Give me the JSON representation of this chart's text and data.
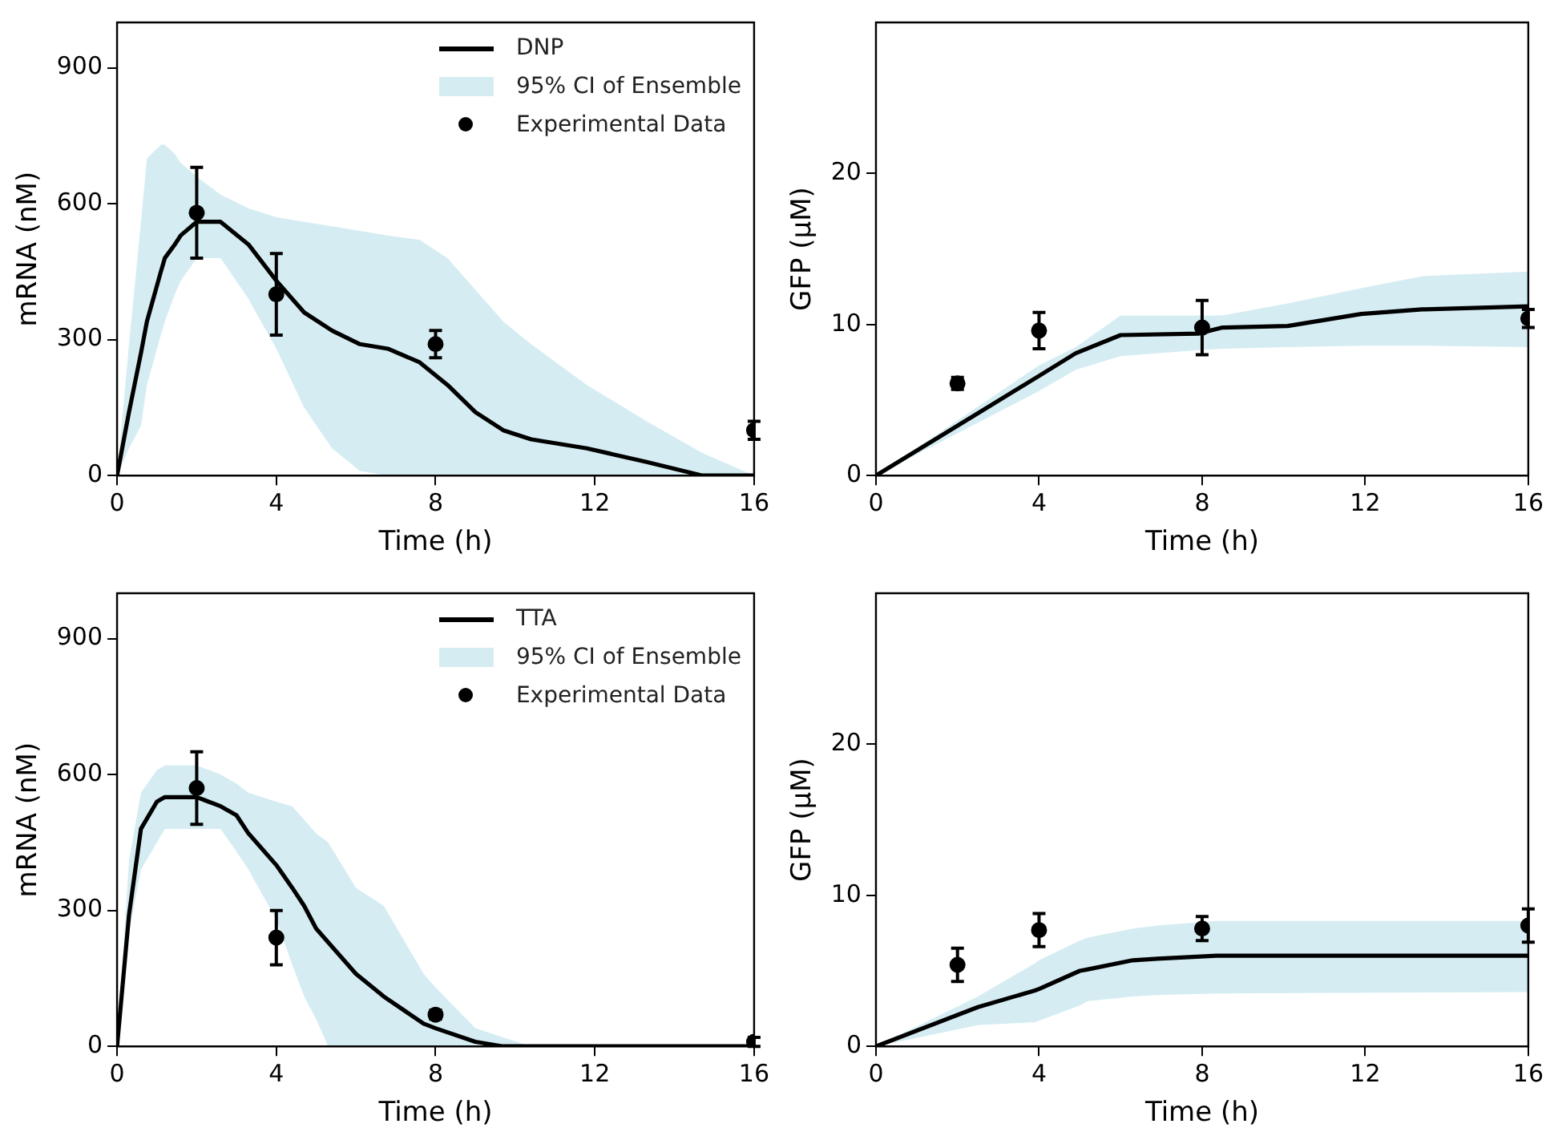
{
  "chart_data": [
    {
      "type": "line",
      "xlabel": "Time (h)",
      "ylabel": "mRNA (nM)",
      "xlim": [
        0,
        16
      ],
      "xticks": [
        0,
        4,
        8,
        12,
        16
      ],
      "ylim": [
        0,
        1000
      ],
      "yticks": [
        0,
        300,
        600,
        900
      ],
      "grid": false,
      "legend": "top right",
      "annotations": [
        "95% CI of Ensemble"
      ],
      "series": [
        {
          "name": "DNP",
          "color": "#000000",
          "x": [
            0,
            0.3,
            0.6,
            0.75,
            1.1,
            1.2,
            1.45,
            1.6,
            2,
            2.6,
            3.3,
            4,
            4.7,
            5.4,
            6.1,
            6.8,
            7.6,
            8.3,
            9,
            9.7,
            10.4,
            11.8,
            13.3,
            14.7,
            16
          ],
          "values": [
            0,
            140,
            270,
            340,
            450,
            480,
            510,
            530,
            560,
            560,
            510,
            430,
            360,
            320,
            290,
            280,
            250,
            200,
            140,
            100,
            80,
            60,
            30,
            0,
            0
          ],
          "lower": [
            0,
            60,
            110,
            200,
            310,
            340,
            400,
            430,
            480,
            480,
            390,
            280,
            150,
            60,
            10,
            0,
            0,
            0,
            0,
            0,
            0,
            0,
            0,
            0,
            0
          ],
          "upper": [
            0,
            290,
            560,
            700,
            730,
            730,
            710,
            690,
            660,
            620,
            590,
            570,
            560,
            550,
            540,
            530,
            520,
            480,
            410,
            340,
            290,
            200,
            120,
            50,
            0
          ]
        },
        {
          "type": "scatter",
          "name": "Experimental Data",
          "color": "#000000",
          "marker": "circle",
          "x": [
            2,
            4,
            8,
            16
          ],
          "values": [
            580,
            400,
            290,
            100
          ],
          "errors": [
            100,
            90,
            30,
            20
          ]
        }
      ]
    },
    {
      "type": "line",
      "xlabel": "Time (h)",
      "ylabel": "GFP (μM)",
      "xlim": [
        0,
        16
      ],
      "xticks": [
        0,
        4,
        8,
        12,
        16
      ],
      "ylim": [
        0,
        30
      ],
      "yticks": [
        0,
        10,
        20
      ],
      "grid": false,
      "series": [
        {
          "color": "#000000",
          "x": [
            0,
            4,
            4.9,
            6,
            7.9,
            8.5,
            10.1,
            11.9,
            13.4,
            16
          ],
          "values": [
            0,
            6.6,
            8.1,
            9.3,
            9.4,
            9.8,
            9.9,
            10.7,
            11,
            11.2
          ],
          "lower": [
            0,
            5.6,
            7,
            7.9,
            8.3,
            8.4,
            8.5,
            8.6,
            8.6,
            8.5
          ],
          "upper": [
            0,
            7.3,
            8.5,
            10.6,
            10.6,
            10.6,
            11.4,
            12.4,
            13.2,
            13.5
          ]
        },
        {
          "type": "scatter",
          "color": "#000000",
          "marker": "circle",
          "x": [
            2,
            4,
            8,
            16
          ],
          "values": [
            6.1,
            9.6,
            9.8,
            10.4
          ],
          "errors": [
            0.4,
            1.2,
            1.8,
            0.6
          ]
        }
      ]
    },
    {
      "type": "line",
      "xlabel": "Time (h)",
      "ylabel": "mRNA (nM)",
      "xlim": [
        0,
        16
      ],
      "xticks": [
        0,
        4,
        8,
        12,
        16
      ],
      "ylim": [
        0,
        1000
      ],
      "yticks": [
        0,
        300,
        600,
        900
      ],
      "grid": false,
      "legend": "top right",
      "annotations": [
        "95% CI of Ensemble"
      ],
      "series": [
        {
          "name": "TTA",
          "color": "#000000",
          "x": [
            0,
            0.3,
            0.6,
            1,
            1.2,
            2,
            2.6,
            3,
            3.3,
            4,
            4.4,
            4.7,
            5,
            5.3,
            6,
            6.7,
            7.7,
            8,
            9,
            9.7,
            10.4,
            16
          ],
          "values": [
            0,
            290,
            480,
            540,
            550,
            550,
            530,
            510,
            470,
            400,
            350,
            310,
            260,
            230,
            160,
            110,
            50,
            40,
            10,
            0,
            0,
            0
          ],
          "lower": [
            0,
            250,
            390,
            450,
            480,
            480,
            480,
            430,
            390,
            280,
            180,
            110,
            60,
            0,
            0,
            0,
            0,
            0,
            0,
            0,
            0,
            0
          ],
          "upper": [
            0,
            410,
            560,
            610,
            620,
            620,
            600,
            580,
            560,
            540,
            530,
            500,
            470,
            450,
            350,
            310,
            160,
            130,
            40,
            20,
            0,
            0
          ]
        },
        {
          "type": "scatter",
          "name": "Experimental Data",
          "color": "#000000",
          "marker": "circle",
          "x": [
            2,
            4,
            8,
            16
          ],
          "values": [
            570,
            240,
            70,
            10
          ],
          "errors": [
            80,
            60,
            10,
            10
          ]
        }
      ]
    },
    {
      "type": "line",
      "xlabel": "Time (h)",
      "ylabel": "GFP (μM)",
      "xlim": [
        0,
        16
      ],
      "xticks": [
        0,
        4,
        8,
        12,
        16
      ],
      "ylim": [
        0,
        30
      ],
      "yticks": [
        0,
        10,
        20
      ],
      "grid": false,
      "series": [
        {
          "color": "#000000",
          "x": [
            0,
            2.5,
            3.9,
            4,
            5,
            5.2,
            6.3,
            6.9,
            8.35,
            16
          ],
          "values": [
            0,
            2.6,
            3.7,
            3.8,
            5,
            5.1,
            5.7,
            5.8,
            6,
            6
          ],
          "lower": [
            0,
            1.4,
            1.6,
            1.7,
            2.7,
            3,
            3.3,
            3.4,
            3.5,
            3.6
          ],
          "upper": [
            0,
            3.3,
            5.5,
            5.7,
            7,
            7.2,
            7.8,
            8,
            8.3,
            8.3
          ]
        },
        {
          "type": "scatter",
          "color": "#000000",
          "marker": "circle",
          "x": [
            2,
            4,
            8,
            16
          ],
          "values": [
            5.4,
            7.7,
            7.8,
            8
          ],
          "errors": [
            1.1,
            1.1,
            0.8,
            1.1
          ]
        }
      ]
    }
  ]
}
